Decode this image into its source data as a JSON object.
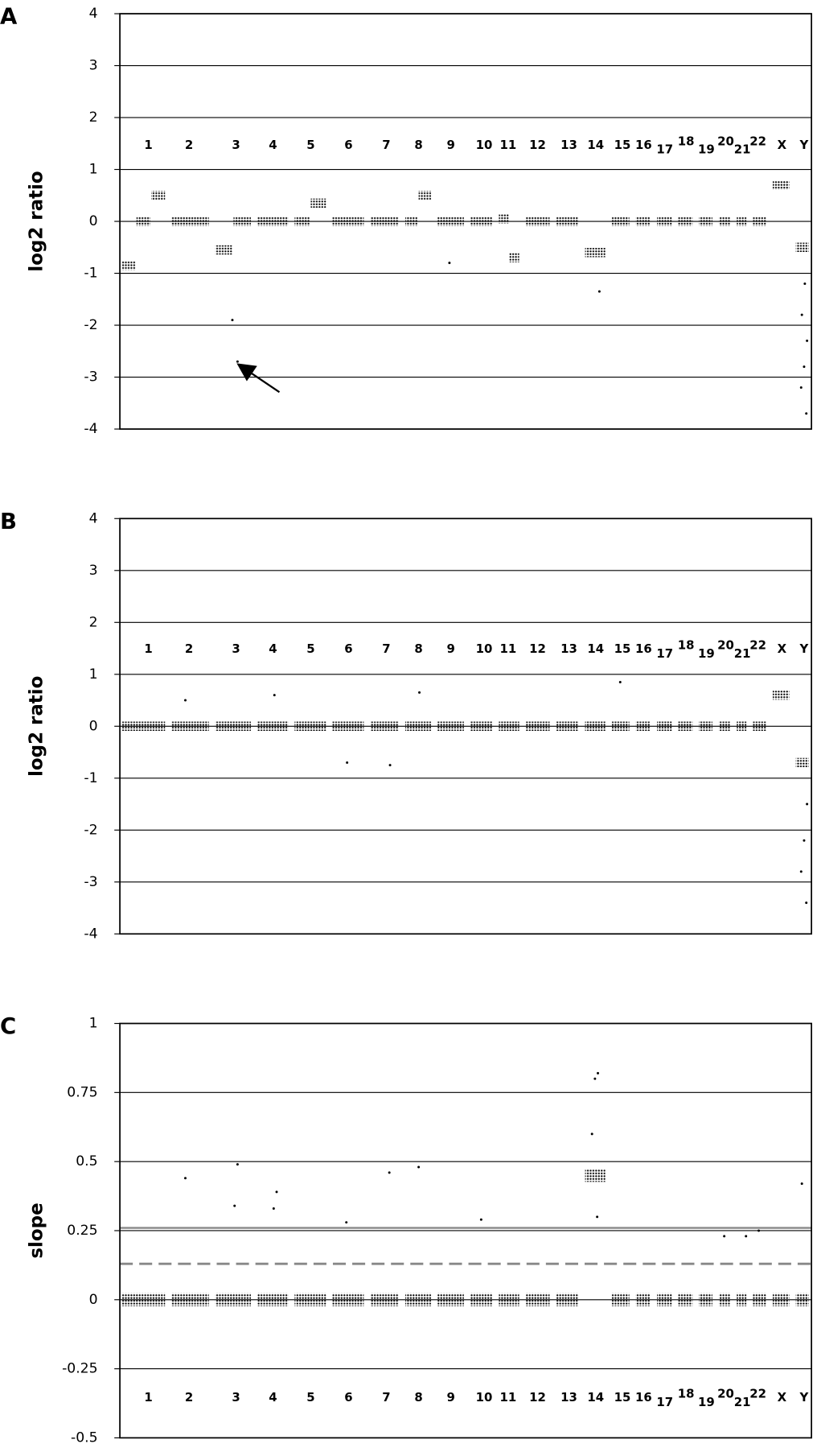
{
  "chart_data": [
    {
      "type": "scatter",
      "panel_label": "A",
      "y_label": "log2 ratio",
      "categories": [
        "1",
        "2",
        "3",
        "4",
        "5",
        "6",
        "7",
        "8",
        "9",
        "10",
        "11",
        "12",
        "13",
        "14",
        "15",
        "16",
        "17",
        "18",
        "19",
        "20",
        "21",
        "22",
        "X",
        "Y"
      ],
      "segments": [
        [
          -0.85,
          0,
          0.5
        ],
        [
          0
        ],
        [
          -0.55,
          0
        ],
        [
          0
        ],
        [
          0,
          0.35
        ],
        [
          0
        ],
        [
          0
        ],
        [
          0,
          0.5
        ],
        [
          0
        ],
        [
          0
        ],
        [
          0.05,
          -0.7
        ],
        [
          0
        ],
        [
          0
        ],
        [
          -0.6
        ],
        [
          0
        ],
        [
          0
        ],
        [
          0
        ],
        [
          0
        ],
        [
          0
        ],
        [
          0
        ],
        [
          0
        ],
        [
          0
        ],
        [
          0.7
        ],
        [
          -0.5
        ]
      ],
      "points": [
        {
          "x": "3",
          "y": -1.9
        },
        {
          "x": "3",
          "y": -2.7
        },
        {
          "x": "9",
          "y": -0.8
        },
        {
          "x": "14",
          "y": -1.35
        },
        {
          "x": "Y",
          "y": -1.2
        },
        {
          "x": "Y",
          "y": -1.8
        },
        {
          "x": "Y",
          "y": -2.3
        },
        {
          "x": "Y",
          "y": -2.8
        },
        {
          "x": "Y",
          "y": -3.2
        },
        {
          "x": "Y",
          "y": -3.7
        }
      ],
      "ylim": [
        -4,
        4
      ],
      "yticks": [
        -4,
        -3,
        -2,
        -1,
        0,
        1,
        2,
        3,
        4
      ],
      "grid": true,
      "color": "#000000"
    },
    {
      "type": "scatter",
      "panel_label": "B",
      "y_label": "log2 ratio",
      "categories": [
        "1",
        "2",
        "3",
        "4",
        "5",
        "6",
        "7",
        "8",
        "9",
        "10",
        "11",
        "12",
        "13",
        "14",
        "15",
        "16",
        "17",
        "18",
        "19",
        "20",
        "21",
        "22",
        "X",
        "Y"
      ],
      "segments": [
        [
          0
        ],
        [
          0
        ],
        [
          0
        ],
        [
          0
        ],
        [
          0
        ],
        [
          0
        ],
        [
          0
        ],
        [
          0
        ],
        [
          0
        ],
        [
          0
        ],
        [
          0
        ],
        [
          0
        ],
        [
          0
        ],
        [
          0
        ],
        [
          0
        ],
        [
          0
        ],
        [
          0
        ],
        [
          0
        ],
        [
          0
        ],
        [
          0
        ],
        [
          0
        ],
        [
          0
        ],
        [
          0.6
        ],
        [
          -0.7
        ]
      ],
      "points": [
        {
          "x": "2",
          "y": 0.5
        },
        {
          "x": "4",
          "y": 0.6
        },
        {
          "x": "6",
          "y": -0.7
        },
        {
          "x": "7",
          "y": -0.75
        },
        {
          "x": "8",
          "y": 0.65
        },
        {
          "x": "15",
          "y": 0.85
        },
        {
          "x": "Y",
          "y": -1.5
        },
        {
          "x": "Y",
          "y": -2.2
        },
        {
          "x": "Y",
          "y": -2.8
        },
        {
          "x": "Y",
          "y": -3.4
        }
      ],
      "ylim": [
        -4,
        4
      ],
      "yticks": [
        -4,
        -3,
        -2,
        -1,
        0,
        1,
        2,
        3,
        4
      ],
      "grid": true,
      "color": "#000000"
    },
    {
      "type": "scatter",
      "panel_label": "C",
      "y_label": "slope",
      "categories": [
        "1",
        "2",
        "3",
        "4",
        "5",
        "6",
        "7",
        "8",
        "9",
        "10",
        "11",
        "12",
        "13",
        "14",
        "15",
        "16",
        "17",
        "18",
        "19",
        "20",
        "21",
        "22",
        "X",
        "Y"
      ],
      "segments": [
        [
          0
        ],
        [
          0
        ],
        [
          0
        ],
        [
          0
        ],
        [
          0
        ],
        [
          0
        ],
        [
          0
        ],
        [
          0
        ],
        [
          0
        ],
        [
          0
        ],
        [
          0
        ],
        [
          0
        ],
        [
          0
        ],
        [
          0.45
        ],
        [
          0
        ],
        [
          0
        ],
        [
          0
        ],
        [
          0
        ],
        [
          0
        ],
        [
          0
        ],
        [
          0
        ],
        [
          0
        ],
        [
          0
        ],
        [
          0
        ]
      ],
      "points": [
        {
          "x": "2",
          "y": 0.44
        },
        {
          "x": "3",
          "y": 0.49
        },
        {
          "x": "3",
          "y": 0.34
        },
        {
          "x": "4",
          "y": 0.39
        },
        {
          "x": "4",
          "y": 0.33
        },
        {
          "x": "6",
          "y": 0.28
        },
        {
          "x": "7",
          "y": 0.46
        },
        {
          "x": "8",
          "y": 0.48
        },
        {
          "x": "10",
          "y": 0.29
        },
        {
          "x": "14",
          "y": 0.82
        },
        {
          "x": "14",
          "y": 0.8
        },
        {
          "x": "14",
          "y": 0.6
        },
        {
          "x": "14",
          "y": 0.3
        },
        {
          "x": "20",
          "y": 0.23
        },
        {
          "x": "21",
          "y": 0.23
        },
        {
          "x": "22",
          "y": 0.25
        },
        {
          "x": "Y",
          "y": 0.42
        }
      ],
      "thresholds": [
        {
          "value": 0.26,
          "style": "solid"
        },
        {
          "value": 0.13,
          "style": "dashed"
        }
      ],
      "ylim": [
        -0.5,
        1
      ],
      "yticks": [
        -0.5,
        -0.25,
        0,
        0.25,
        0.5,
        0.75,
        1
      ],
      "grid": true,
      "color": "#000000"
    }
  ]
}
